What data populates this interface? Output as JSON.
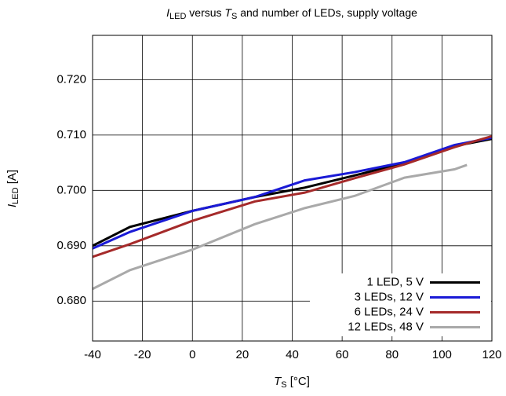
{
  "chart_data": {
    "type": "line",
    "title": [
      "I",
      "LED",
      " versus ",
      "T",
      "S",
      " and number of LEDs, supply voltage"
    ],
    "x_label": [
      "T",
      "S",
      " [°C]"
    ],
    "y_label": [
      "I",
      "LED",
      " [A]"
    ],
    "xlim": [
      -40,
      120
    ],
    "xticks": [
      -40,
      -20,
      0,
      20,
      40,
      60,
      80,
      100,
      120
    ],
    "ylim": [
      0.6728,
      0.728
    ],
    "yticks": [
      {
        "value": 0.68,
        "label": "0.680"
      },
      {
        "value": 0.69,
        "label": "0.690"
      },
      {
        "value": 0.7,
        "label": "0.700"
      },
      {
        "value": 0.71,
        "label": "0.710"
      },
      {
        "value": 0.72,
        "label": "0.720"
      }
    ],
    "grid": true,
    "legend": "bottom-right",
    "series": [
      {
        "name": "1 LED, 5 V",
        "color": "#000000",
        "x": [
          -40,
          -25,
          0,
          25,
          45,
          65,
          85,
          105,
          120
        ],
        "values": [
          0.69,
          0.6934,
          0.6963,
          0.6988,
          0.7005,
          0.7027,
          0.705,
          0.708,
          0.7093
        ]
      },
      {
        "name": "3 LEDs, 12 V",
        "color": "#1a1ad6",
        "x": [
          -40,
          -25,
          0,
          25,
          45,
          65,
          85,
          105,
          120
        ],
        "values": [
          0.6895,
          0.6925,
          0.6963,
          0.6988,
          0.7018,
          0.7033,
          0.7051,
          0.7082,
          0.7095
        ]
      },
      {
        "name": "6 LEDs, 24 V",
        "color": "#a52a2a",
        "x": [
          -40,
          -25,
          0,
          25,
          45,
          65,
          85,
          105,
          120
        ],
        "values": [
          0.688,
          0.6903,
          0.6945,
          0.698,
          0.6996,
          0.7022,
          0.7047,
          0.7078,
          0.7098
        ]
      },
      {
        "name": "12 LEDs, 48 V",
        "color": "#a9a9a9",
        "x": [
          -40,
          -25,
          0,
          25,
          45,
          65,
          85,
          105,
          110
        ],
        "values": [
          0.6822,
          0.6856,
          0.6893,
          0.6939,
          0.6968,
          0.699,
          0.7023,
          0.7038,
          0.7046
        ]
      }
    ]
  }
}
